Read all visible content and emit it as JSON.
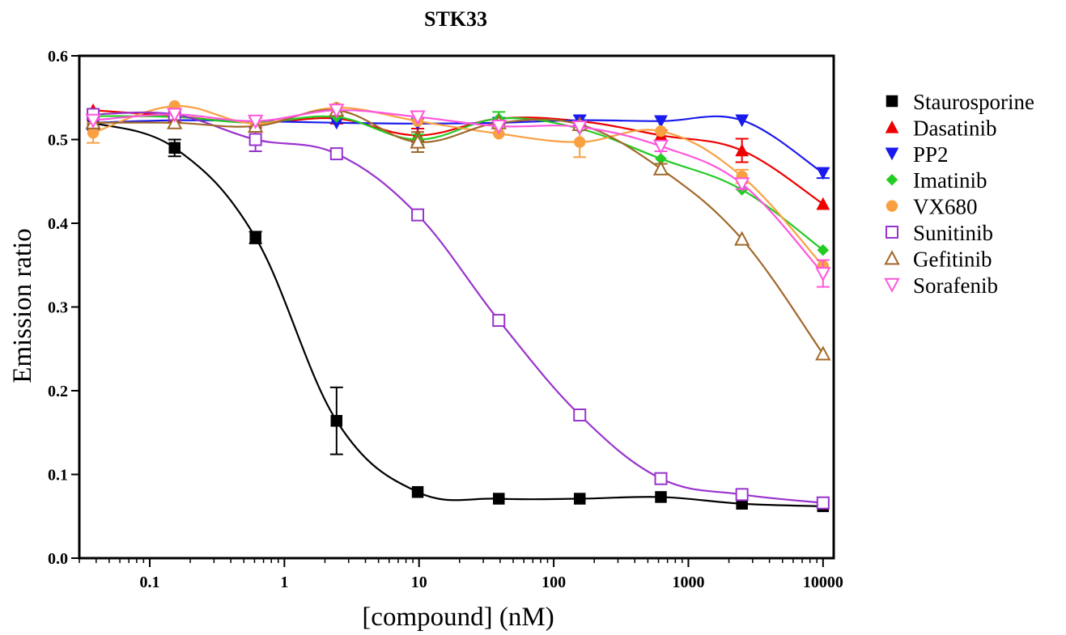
{
  "chart_data": {
    "type": "scatter",
    "title": "STK33",
    "xlabel": "[compound] (nM)",
    "ylabel": "Emission ratio",
    "xscale": "log",
    "xlim": [
      0.03,
      12000
    ],
    "ylim": [
      0.0,
      0.6
    ],
    "x_ticks": [
      0.1,
      1,
      10,
      100,
      1000,
      10000
    ],
    "x_tick_labels": [
      "0.1",
      "1",
      "10",
      "100",
      "1000",
      "10000"
    ],
    "y_ticks": [
      0.0,
      0.1,
      0.2,
      0.3,
      0.4,
      0.5,
      0.6
    ],
    "y_tick_labels": [
      "0.0",
      "0.1",
      "0.2",
      "0.3",
      "0.4",
      "0.5",
      "0.6"
    ],
    "x": [
      0.038,
      0.153,
      0.61,
      2.44,
      9.77,
      39.1,
      156,
      625,
      2500,
      10000
    ],
    "legend": "right",
    "series": [
      {
        "name": "Staurosporine",
        "color": "#000000",
        "marker": "square-filled",
        "y": [
          0.52,
          0.49,
          0.383,
          0.164,
          0.079,
          0.071,
          0.071,
          0.073,
          0.065,
          0.062
        ],
        "err": [
          0.005,
          0.01,
          0.007,
          0.04,
          0.004,
          0.003,
          0.003,
          0.004,
          0.003,
          0.004
        ]
      },
      {
        "name": "Dasatinib",
        "color": "#ee0000",
        "marker": "triangle-up-filled",
        "y": [
          0.535,
          0.528,
          0.52,
          0.525,
          0.505,
          0.525,
          0.522,
          0.505,
          0.487,
          0.423
        ],
        "err": [
          0.004,
          0.004,
          0.006,
          0.004,
          0.008,
          0.004,
          0.004,
          0.006,
          0.014,
          0.004
        ]
      },
      {
        "name": "PP2",
        "color": "#1a1aee",
        "marker": "triangle-down-filled",
        "y": [
          0.52,
          0.523,
          0.522,
          0.52,
          0.519,
          0.52,
          0.523,
          0.522,
          0.523,
          0.46
        ],
        "err": [
          0.008,
          0.004,
          0.004,
          0.004,
          0.004,
          0.004,
          0.006,
          0.004,
          0.004,
          0.006
        ]
      },
      {
        "name": "Imatinib",
        "color": "#22cc22",
        "marker": "diamond-filled",
        "y": [
          0.528,
          0.527,
          0.52,
          0.527,
          0.5,
          0.525,
          0.513,
          0.477,
          0.44,
          0.368
        ],
        "err": [
          0.004,
          0.004,
          0.004,
          0.004,
          0.006,
          0.008,
          0.004,
          0.004,
          0.004,
          0.004
        ]
      },
      {
        "name": "VX680",
        "color": "#f9a040",
        "marker": "circle-filled",
        "y": [
          0.508,
          0.54,
          0.519,
          0.538,
          0.522,
          0.507,
          0.497,
          0.51,
          0.456,
          0.349
        ],
        "err": [
          0.012,
          0.004,
          0.004,
          0.004,
          0.004,
          0.004,
          0.018,
          0.004,
          0.008,
          0.004
        ]
      },
      {
        "name": "Sunitinib",
        "color": "#9933cc",
        "marker": "square-open",
        "y": [
          0.53,
          0.53,
          0.5,
          0.483,
          0.41,
          0.284,
          0.171,
          0.095,
          0.076,
          0.066
        ],
        "err": [
          0.006,
          0.004,
          0.014,
          0.004,
          0.004,
          0.004,
          0.004,
          0.004,
          0.004,
          0.004
        ]
      },
      {
        "name": "Gefitinib",
        "color": "#a0682a",
        "marker": "triangle-up-open",
        "y": [
          0.52,
          0.52,
          0.516,
          0.535,
          0.497,
          0.52,
          0.518,
          0.465,
          0.381,
          0.244
        ],
        "err": [
          0.004,
          0.004,
          0.004,
          0.004,
          0.012,
          0.004,
          0.004,
          0.006,
          0.004,
          0.004
        ]
      },
      {
        "name": "Sorafenib",
        "color": "#ff55dd",
        "marker": "triangle-down-open",
        "y": [
          0.523,
          0.53,
          0.522,
          0.535,
          0.527,
          0.516,
          0.515,
          0.492,
          0.447,
          0.34
        ],
        "err": [
          0.004,
          0.004,
          0.004,
          0.004,
          0.004,
          0.004,
          0.004,
          0.006,
          0.006,
          0.016
        ]
      }
    ]
  }
}
